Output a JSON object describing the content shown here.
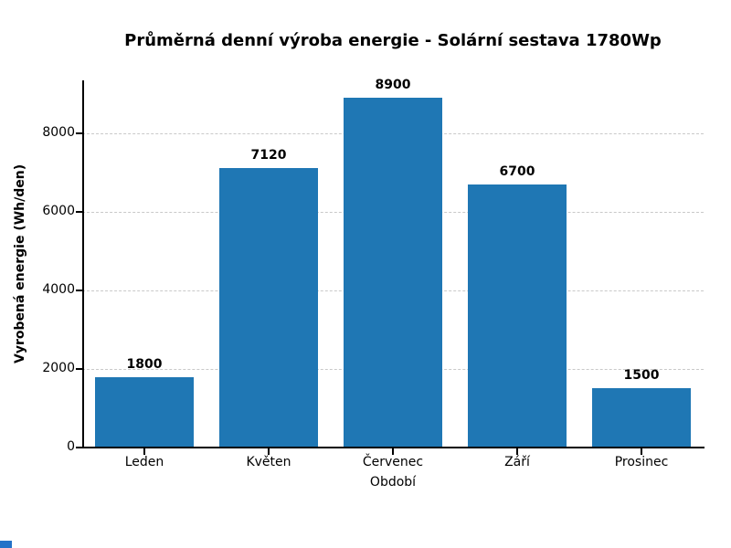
{
  "chart_data": {
    "type": "bar",
    "title": "Průměrná denní výroba energie - Solární sestava 1780Wp",
    "categories": [
      "Leden",
      "Květen",
      "Červenec",
      "Září",
      "Prosinec"
    ],
    "values": [
      1800,
      7120,
      8900,
      6700,
      1500
    ],
    "value_labels": [
      "1800",
      "7120",
      "8900",
      "6700",
      "1500"
    ],
    "xlabel": "Období",
    "ylabel": "Vyrobená energie (Wh/den)",
    "ylim": [
      0,
      9345
    ],
    "yticks": [
      0,
      2000,
      4000,
      6000,
      8000
    ],
    "grid": "horizontal-dashed",
    "legend": "none",
    "bar_color": "#1f77b4",
    "background_color": "#ffffff"
  }
}
